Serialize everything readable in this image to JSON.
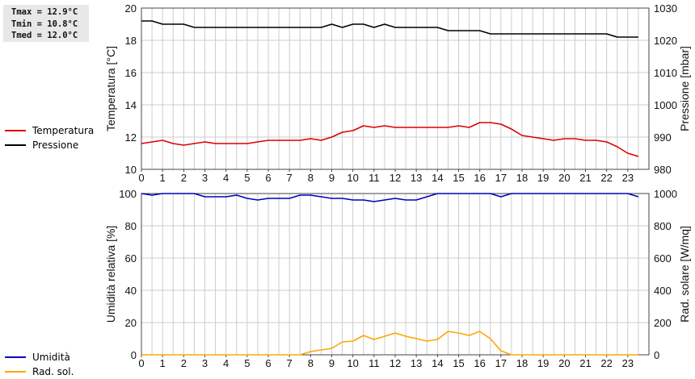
{
  "stats": {
    "tmax": "Tmax = 12.9°C",
    "tmin": "Tmin = 10.8°C",
    "tmed": "Tmed = 12.0°C"
  },
  "colors": {
    "temperature": "#dd0000",
    "pressure": "#000000",
    "humidity": "#0000bb",
    "radiation": "#ffa500",
    "grid": "#cccccc"
  },
  "chart_data": [
    {
      "type": "line",
      "xlim": [
        0,
        24
      ],
      "x_ticks": [
        0,
        1,
        2,
        3,
        4,
        5,
        6,
        7,
        8,
        9,
        10,
        11,
        12,
        13,
        14,
        15,
        16,
        17,
        18,
        19,
        20,
        21,
        22,
        23
      ],
      "x_step": 0.5,
      "left_axis": {
        "label": "Temperatura [°C]",
        "ylim": [
          10,
          20
        ],
        "ticks": [
          10,
          12,
          14,
          16,
          18,
          20
        ]
      },
      "right_axis": {
        "label": "Pressione [mbar]",
        "ylim": [
          980,
          1030
        ],
        "ticks": [
          980,
          990,
          1000,
          1010,
          1020,
          1030
        ]
      },
      "series": [
        {
          "name": "Temperatura",
          "axis": "left",
          "values": [
            11.6,
            11.7,
            11.8,
            11.6,
            11.5,
            11.6,
            11.7,
            11.6,
            11.6,
            11.6,
            11.6,
            11.7,
            11.8,
            11.8,
            11.8,
            11.8,
            11.9,
            11.8,
            12.0,
            12.3,
            12.4,
            12.7,
            12.6,
            12.7,
            12.6,
            12.6,
            12.6,
            12.6,
            12.6,
            12.6,
            12.7,
            12.6,
            12.9,
            12.9,
            12.8,
            12.5,
            12.1,
            12.0,
            11.9,
            11.8,
            11.9,
            11.9,
            11.8,
            11.8,
            11.7,
            11.4,
            11.0,
            10.8
          ]
        },
        {
          "name": "Pressione",
          "axis": "right",
          "values": [
            1026,
            1026,
            1025,
            1025,
            1025,
            1024,
            1024,
            1024,
            1024,
            1024,
            1024,
            1024,
            1024,
            1024,
            1024,
            1024,
            1024,
            1024,
            1025,
            1024,
            1025,
            1025,
            1024,
            1025,
            1024,
            1024,
            1024,
            1024,
            1024,
            1023,
            1023,
            1023,
            1023,
            1022,
            1022,
            1022,
            1022,
            1022,
            1022,
            1022,
            1022,
            1022,
            1022,
            1022,
            1022,
            1021,
            1021,
            1021
          ]
        }
      ]
    },
    {
      "type": "line",
      "xlim": [
        0,
        24
      ],
      "x_ticks": [
        0,
        1,
        2,
        3,
        4,
        5,
        6,
        7,
        8,
        9,
        10,
        11,
        12,
        13,
        14,
        15,
        16,
        17,
        18,
        19,
        20,
        21,
        22,
        23
      ],
      "x_step": 0.5,
      "left_axis": {
        "label": "Umidità relativa [%]",
        "ylim": [
          0,
          100
        ],
        "ticks": [
          0,
          20,
          40,
          60,
          80,
          100
        ]
      },
      "right_axis": {
        "label": "Rad. solare [W/mq]",
        "ylim": [
          0,
          1000
        ],
        "ticks": [
          0,
          200,
          400,
          600,
          800,
          1000
        ]
      },
      "series": [
        {
          "name": "Umidità",
          "axis": "left",
          "values": [
            100,
            99,
            100,
            100,
            100,
            100,
            98,
            98,
            98,
            99,
            97,
            96,
            97,
            97,
            97,
            99,
            99,
            98,
            97,
            97,
            96,
            96,
            95,
            96,
            97,
            96,
            96,
            98,
            100,
            100,
            100,
            100,
            100,
            100,
            98,
            100,
            100,
            100,
            100,
            100,
            100,
            100,
            100,
            100,
            100,
            100,
            100,
            98
          ]
        },
        {
          "name": "Rad. sol.",
          "axis": "right",
          "values": [
            0,
            0,
            0,
            0,
            0,
            0,
            0,
            0,
            0,
            0,
            0,
            0,
            0,
            0,
            0,
            0,
            20,
            30,
            40,
            80,
            85,
            120,
            95,
            115,
            135,
            115,
            100,
            85,
            95,
            145,
            135,
            120,
            145,
            100,
            25,
            0,
            0,
            0,
            0,
            0,
            0,
            0,
            0,
            0,
            0,
            0,
            0,
            0
          ]
        }
      ]
    }
  ]
}
